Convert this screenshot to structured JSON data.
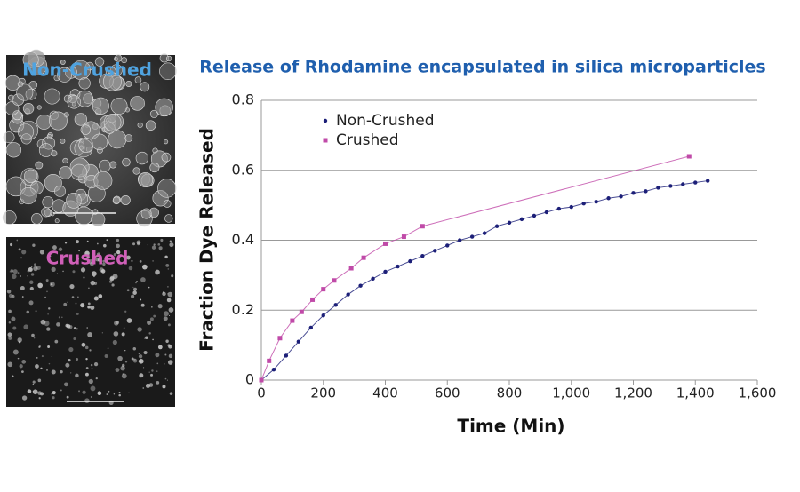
{
  "panels": [
    {
      "label": "Non-Crushed",
      "color": "#4fa3e0"
    },
    {
      "label": "Crushed",
      "color": "#d05fb8"
    }
  ],
  "chart_data": {
    "type": "scatter-line",
    "title": "Release of Rhodamine encapsulated in silica microparticles",
    "x_label": "Time (Min)",
    "y_label": "Fraction Dye Released",
    "xlim": [
      0,
      1600
    ],
    "ylim": [
      0,
      0.8
    ],
    "xticks": [
      0,
      200,
      400,
      600,
      800,
      {
        "value": 1000,
        "label": "1,000"
      },
      {
        "value": 1200,
        "label": "1,200"
      },
      {
        "value": 1400,
        "label": "1,400"
      },
      {
        "value": 1600,
        "label": "1,600"
      }
    ],
    "yticks": [
      0,
      0.2,
      0.4,
      0.6,
      0.8
    ],
    "grid": true,
    "legend": "top-left",
    "series": [
      {
        "name": "Non-Crushed",
        "color": "#1c1f78",
        "marker": "circle",
        "x": [
          0,
          40,
          80,
          120,
          160,
          200,
          240,
          280,
          320,
          360,
          400,
          440,
          480,
          520,
          560,
          600,
          640,
          680,
          720,
          760,
          800,
          840,
          880,
          920,
          960,
          1000,
          1040,
          1080,
          1120,
          1160,
          1200,
          1240,
          1280,
          1320,
          1360,
          1400,
          1440
        ],
        "values": [
          0,
          0.03,
          0.07,
          0.11,
          0.15,
          0.185,
          0.215,
          0.245,
          0.27,
          0.29,
          0.31,
          0.325,
          0.34,
          0.355,
          0.37,
          0.385,
          0.4,
          0.41,
          0.42,
          0.44,
          0.45,
          0.46,
          0.47,
          0.48,
          0.49,
          0.495,
          0.505,
          0.51,
          0.52,
          0.525,
          0.535,
          0.54,
          0.55,
          0.555,
          0.56,
          0.565,
          0.57
        ]
      },
      {
        "name": "Crushed",
        "color": "#c04aa8",
        "marker": "square",
        "x": [
          0,
          25,
          60,
          100,
          130,
          165,
          200,
          235,
          290,
          330,
          400,
          460,
          520,
          1380
        ],
        "values": [
          0,
          0.055,
          0.12,
          0.17,
          0.195,
          0.23,
          0.26,
          0.285,
          0.32,
          0.35,
          0.39,
          0.41,
          0.44,
          0.64
        ]
      }
    ]
  }
}
